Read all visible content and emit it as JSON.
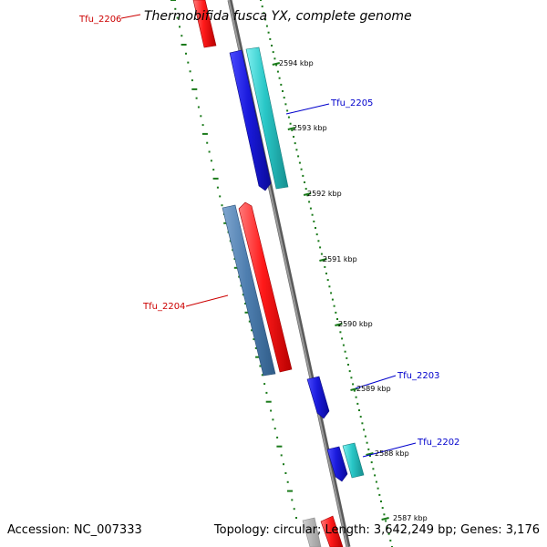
{
  "title": "Thermobifida fusca YX, complete genome",
  "accession": "Accession: NC_007333",
  "summary": "Topology: circular; Length: 3,642,249 bp; Genes: 3,176",
  "colors": {
    "backbone": "#7f7f7f",
    "ticks": "#1a7a1a",
    "forward_red": "#ff1a1a",
    "forward_blue": "#1a1adc",
    "reverse_cyan": "#29c7c7",
    "reverse_steel": "#4f7fb0",
    "label_red": "#cc0000",
    "label_blue": "#0000cc"
  },
  "scale_ticks": [
    {
      "label": "2594 kbp"
    },
    {
      "label": "2593 kbp"
    },
    {
      "label": "2592 kbp"
    },
    {
      "label": "2591 kbp"
    },
    {
      "label": "2590 kbp"
    },
    {
      "label": "2589 kbp"
    },
    {
      "label": "2588 kbp"
    },
    {
      "label": "2587 kbp"
    }
  ],
  "gene_labels": [
    {
      "name": "Tfu_2206",
      "color": "label_red"
    },
    {
      "name": "Tfu_2205",
      "color": "label_blue"
    },
    {
      "name": "Tfu_2204",
      "color": "label_red"
    },
    {
      "name": "Tfu_2203",
      "color": "label_blue"
    },
    {
      "name": "Tfu_2202",
      "color": "label_blue"
    }
  ]
}
